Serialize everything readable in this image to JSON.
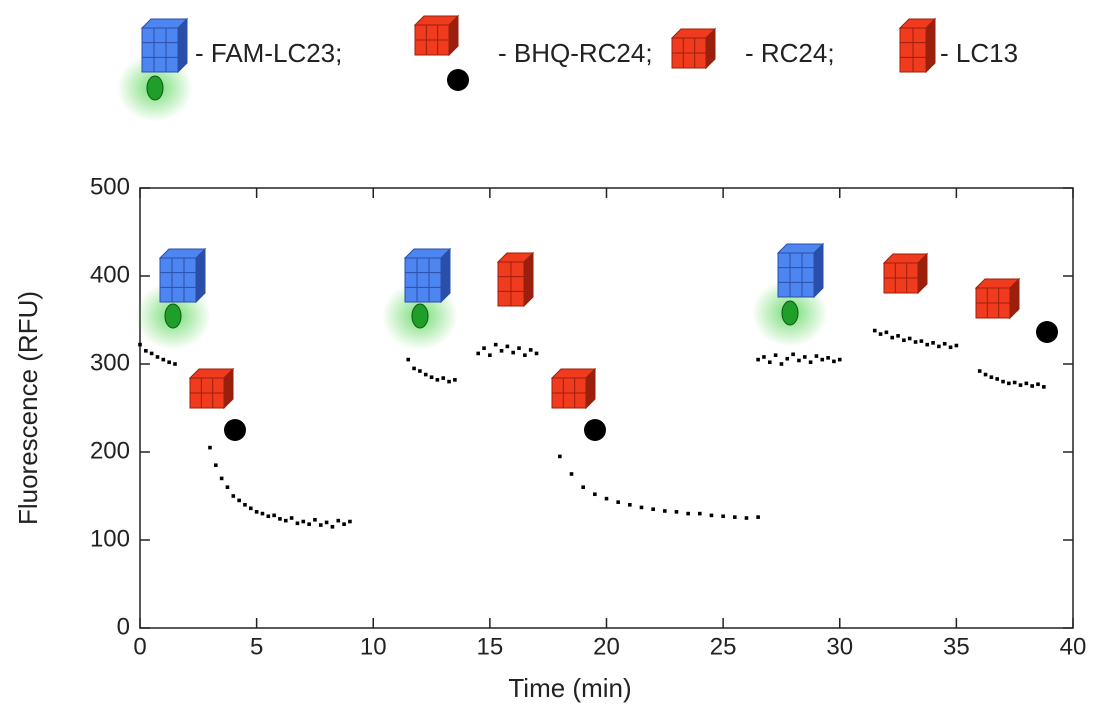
{
  "chart_data": {
    "type": "scatter",
    "legend_items": [
      "- FAM-LC23;",
      "- BHQ-RC24;",
      "- RC24;",
      "- LC13"
    ],
    "x_label": "Time (min)",
    "y_label": "Fluorescence (RFU)",
    "color": "#000000",
    "xlim": [
      0,
      40
    ],
    "xticks": [
      0,
      5,
      10,
      15,
      20,
      25,
      30,
      35,
      40
    ],
    "ylim": [
      0,
      500
    ],
    "yticks": [
      0,
      100,
      200,
      300,
      400,
      500
    ],
    "x": [
      0,
      0.25,
      0.5,
      0.75,
      1,
      1.25,
      1.5,
      3,
      3.25,
      3.5,
      3.75,
      4,
      4.25,
      4.5,
      4.75,
      5,
      5.25,
      5.5,
      5.75,
      6,
      6.25,
      6.5,
      6.75,
      7,
      7.25,
      7.5,
      7.75,
      8,
      8.25,
      8.5,
      8.75,
      9,
      11.5,
      11.75,
      12,
      12.25,
      12.5,
      12.75,
      13,
      13.25,
      13.5,
      14.5,
      14.75,
      15,
      15.25,
      15.5,
      15.75,
      16,
      16.25,
      16.5,
      16.75,
      17,
      18,
      18.5,
      19,
      19.5,
      20,
      20.5,
      21,
      21.5,
      22,
      22.5,
      23,
      23.5,
      24,
      24.5,
      25,
      25.5,
      26,
      26.5,
      26.5,
      26.75,
      27,
      27.25,
      27.5,
      27.75,
      28,
      28.25,
      28.5,
      28.75,
      29,
      29.25,
      29.5,
      29.75,
      30,
      31.5,
      31.75,
      32,
      32.25,
      32.5,
      32.75,
      33,
      33.25,
      33.5,
      33.75,
      34,
      34.25,
      34.5,
      34.75,
      35,
      36,
      36.25,
      36.5,
      36.75,
      37,
      37.25,
      37.5,
      37.75,
      38,
      38.25,
      38.5,
      38.75
    ],
    "values": [
      322,
      315,
      312,
      308,
      305,
      302,
      300,
      205,
      185,
      170,
      160,
      150,
      145,
      140,
      136,
      132,
      130,
      127,
      128,
      124,
      122,
      125,
      119,
      121,
      118,
      123,
      117,
      120,
      115,
      122,
      118,
      121,
      305,
      295,
      292,
      288,
      285,
      282,
      284,
      280,
      282,
      312,
      318,
      310,
      322,
      315,
      320,
      313,
      318,
      310,
      316,
      312,
      195,
      175,
      160,
      152,
      147,
      143,
      140,
      137,
      135,
      133,
      132,
      130,
      130,
      128,
      127,
      126,
      125,
      126,
      305,
      308,
      302,
      310,
      300,
      306,
      311,
      304,
      308,
      302,
      309,
      305,
      307,
      303,
      305,
      338,
      334,
      336,
      330,
      332,
      327,
      329,
      325,
      326,
      322,
      324,
      320,
      323,
      319,
      321,
      292,
      288,
      285,
      283,
      280,
      278,
      279,
      276,
      278,
      275,
      277,
      274
    ]
  }
}
